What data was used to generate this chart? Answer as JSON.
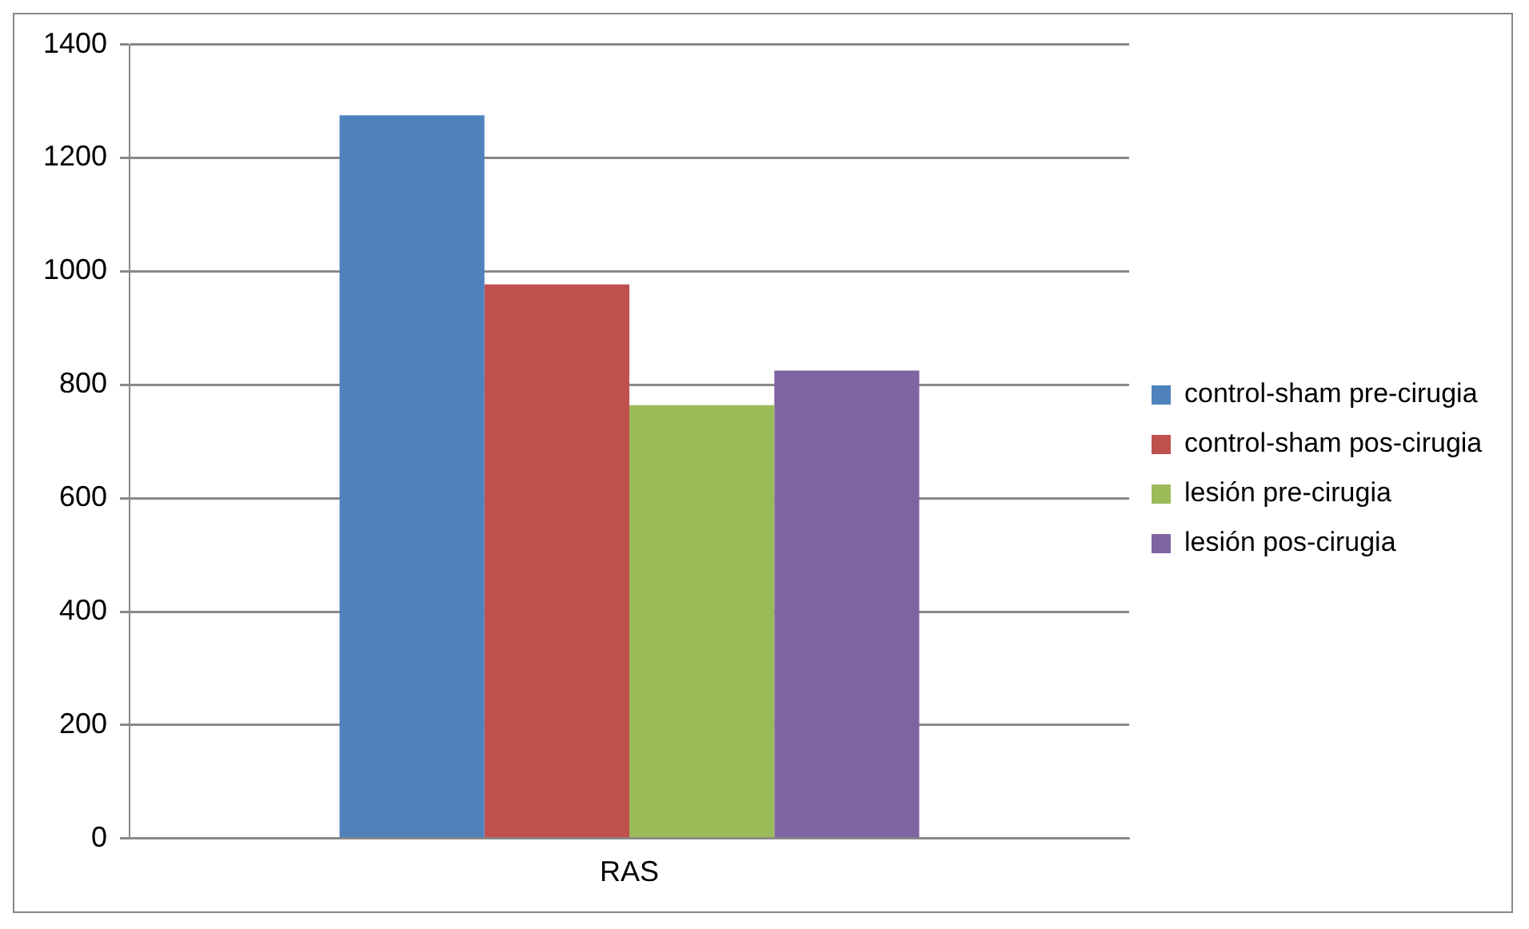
{
  "chart_data": {
    "type": "bar",
    "categories": [
      "RAS"
    ],
    "series": [
      {
        "name": "control-sham pre-cirugia",
        "color": "#4f81bd",
        "values": [
          1275
        ]
      },
      {
        "name": "control-sham pos-cirugia",
        "color": "#c0504d",
        "values": [
          977
        ]
      },
      {
        "name": "lesión pre-cirugia",
        "color": "#9bbb59",
        "values": [
          764
        ]
      },
      {
        "name": "lesión pos-cirugia",
        "color": "#8064a2",
        "values": [
          825
        ]
      }
    ],
    "ylim": [
      0,
      1400
    ],
    "yticks": [
      0,
      200,
      400,
      600,
      800,
      1000,
      1200,
      1400
    ],
    "grid": "y",
    "legend": "right"
  }
}
